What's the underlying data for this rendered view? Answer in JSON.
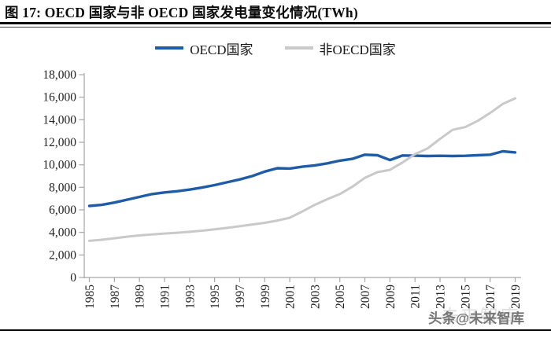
{
  "page": {
    "title": "图 17: OECD 国家与非 OECD 国家发电量变化情况(TWh)",
    "watermark": "头条@未来智库",
    "watermark_ghost": "未来智库"
  },
  "legend": [
    {
      "label": "OECD国家",
      "color": "#1f5ca8"
    },
    {
      "label": "非OECD国家",
      "color": "#c9c9c9"
    }
  ],
  "colors": {
    "axis": "#a6a6a6",
    "tick_text": "#1f1f1f",
    "oecd_line": "#1f5ca8",
    "non_oecd_line": "#c9c9c9"
  },
  "chart_data": {
    "type": "line",
    "title": "图 17: OECD 国家与非 OECD 国家发电量变化情况(TWh)",
    "unit": "TWh",
    "grid": false,
    "legend_position": "top-center",
    "xlabel": "",
    "ylabel": "",
    "ylim": [
      0,
      18000
    ],
    "y_tick_step": 2000,
    "y_tick_labels": [
      "0",
      "2,000",
      "4,000",
      "6,000",
      "8,000",
      "10,000",
      "12,000",
      "14,000",
      "16,000",
      "18,000"
    ],
    "x": [
      1985,
      1986,
      1987,
      1988,
      1989,
      1990,
      1991,
      1992,
      1993,
      1994,
      1995,
      1996,
      1997,
      1998,
      1999,
      2000,
      2001,
      2002,
      2003,
      2004,
      2005,
      2006,
      2007,
      2008,
      2009,
      2010,
      2011,
      2012,
      2013,
      2014,
      2015,
      2016,
      2017,
      2018,
      2019
    ],
    "x_tick_labels": [
      "1985",
      "1987",
      "1989",
      "1991",
      "1993",
      "1995",
      "1997",
      "1999",
      "2001",
      "2003",
      "2005",
      "2007",
      "2009",
      "2011",
      "2013",
      "2015",
      "2017",
      "2019"
    ],
    "series": [
      {
        "name": "OECD国家",
        "color": "#1f5ca8",
        "values": [
          6350,
          6450,
          6650,
          6900,
          7150,
          7400,
          7550,
          7650,
          7800,
          7980,
          8200,
          8450,
          8700,
          9000,
          9400,
          9700,
          9670,
          9830,
          9950,
          10130,
          10370,
          10530,
          10900,
          10850,
          10420,
          10830,
          10810,
          10780,
          10800,
          10780,
          10800,
          10850,
          10900,
          11200,
          11100
        ]
      },
      {
        "name": "非OECD国家",
        "color": "#c9c9c9",
        "values": [
          3250,
          3350,
          3480,
          3620,
          3730,
          3820,
          3900,
          3970,
          4050,
          4150,
          4280,
          4400,
          4550,
          4700,
          4850,
          5050,
          5300,
          5850,
          6450,
          6950,
          7400,
          8050,
          8850,
          9350,
          9550,
          10200,
          10950,
          11450,
          12300,
          13100,
          13350,
          13900,
          14600,
          15400,
          15900
        ]
      }
    ]
  }
}
